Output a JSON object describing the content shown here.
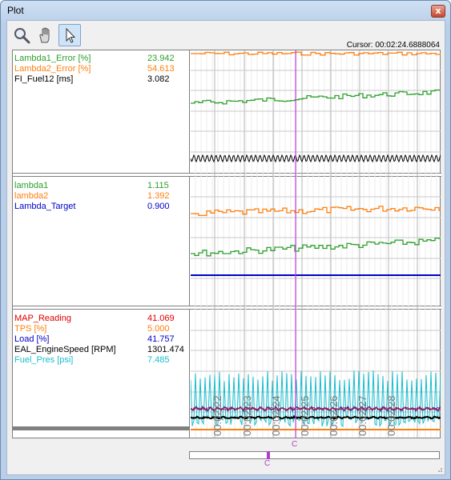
{
  "window": {
    "title": "Plot",
    "close_glyph": "x"
  },
  "toolbar": {
    "tools": [
      {
        "name": "zoom",
        "icon": "magnifier-icon"
      },
      {
        "name": "pan",
        "icon": "hand-icon"
      },
      {
        "name": "select",
        "icon": "pointer-arrow-icon",
        "active": true
      }
    ]
  },
  "cursor": {
    "label": "Cursor: 00:02:24.6888064",
    "marker": "C"
  },
  "panels": [
    {
      "signals": [
        {
          "name": "Lambda1_Error [%]",
          "value": "23.942",
          "color": "#2ca02c"
        },
        {
          "name": "Lambda2_Error [%]",
          "value": "54.613",
          "color": "#ff7f0e"
        },
        {
          "name": "FI_Fuel12 [ms]",
          "value": "3.082",
          "color": "#000000"
        }
      ]
    },
    {
      "signals": [
        {
          "name": "lambda1",
          "value": "1.115",
          "color": "#2ca02c"
        },
        {
          "name": "lambda2",
          "value": "1.392",
          "color": "#ff7f0e"
        },
        {
          "name": "Lambda_Target",
          "value": "0.900",
          "color": "#0000c8"
        }
      ]
    },
    {
      "signals": [
        {
          "name": "MAP_Reading",
          "value": "41.069",
          "color": "#e00000"
        },
        {
          "name": "TPS [%]",
          "value": "5.000",
          "color": "#ff7f0e"
        },
        {
          "name": "Load [%]",
          "value": "41.757",
          "color": "#0000c8"
        },
        {
          "name": "EAL_EngineSpeed [RPM]",
          "value": "1301.474",
          "color": "#000000"
        },
        {
          "name": "Fuel_Pres [psi]",
          "value": "7.485",
          "color": "#17becf"
        }
      ]
    }
  ],
  "time_axis": {
    "ticks": [
      "00:02:22",
      "00:02:23",
      "00:02:24",
      "00:02:25",
      "00:02:26",
      "00:02:27",
      "00:02:28"
    ]
  },
  "colors": {
    "cursor": "#c040e0",
    "grid": "#c8c8c8",
    "border": "#808080"
  }
}
